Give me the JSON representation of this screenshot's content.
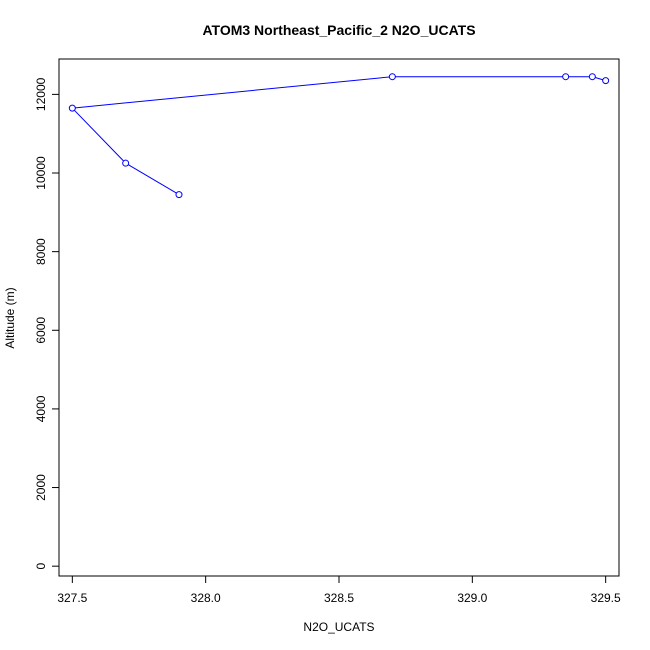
{
  "chart_data": {
    "type": "line",
    "title": "ATOM3 Northeast_Pacific_2 N2O_UCATS",
    "xlabel": "N2O_UCATS",
    "ylabel": "Altitude (m)",
    "xlim": [
      327.45,
      329.55
    ],
    "ylim": [
      -250,
      12900
    ],
    "x_ticks": [
      327.5,
      328.0,
      328.5,
      329.0,
      329.5
    ],
    "x_tick_labels": [
      "327.5",
      "328.0",
      "328.5",
      "329.0",
      "329.5"
    ],
    "y_ticks": [
      0,
      2000,
      4000,
      6000,
      8000,
      10000,
      12000
    ],
    "y_tick_labels": [
      "0",
      "2000",
      "4000",
      "6000",
      "8000",
      "10000",
      "12000"
    ],
    "grid": false,
    "series": [
      {
        "color": "#0000ff",
        "points": [
          {
            "x": 327.9,
            "y": 9450
          },
          {
            "x": 327.7,
            "y": 10250
          },
          {
            "x": 327.5,
            "y": 11650
          },
          {
            "x": 328.7,
            "y": 12450
          },
          {
            "x": 329.35,
            "y": 12450
          },
          {
            "x": 329.45,
            "y": 12450
          },
          {
            "x": 329.5,
            "y": 12350
          }
        ]
      }
    ]
  }
}
